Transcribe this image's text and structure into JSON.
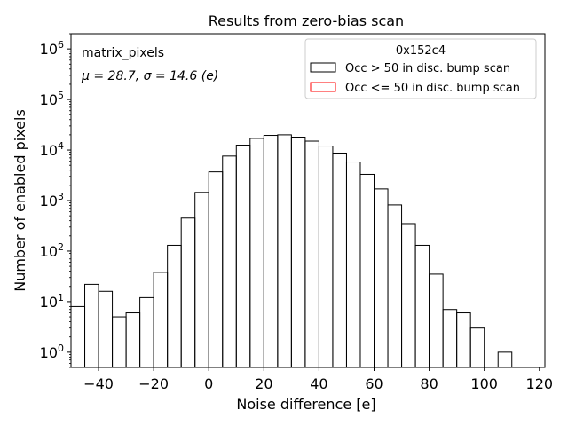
{
  "chart_data": {
    "type": "histogram",
    "title": "Results from zero-bias scan",
    "xlabel": "Noise difference [e]",
    "ylabel": "Number of enabled pixels",
    "xlim": [
      -50,
      122
    ],
    "ylim": [
      0.5,
      2000000
    ],
    "yscale": "log",
    "x_ticks": [
      -40,
      -20,
      0,
      20,
      40,
      60,
      80,
      100,
      120
    ],
    "x_tick_labels": [
      "−40",
      "−20",
      "0",
      "20",
      "40",
      "60",
      "80",
      "100",
      "120"
    ],
    "y_ticks": [
      1,
      10,
      100,
      1000,
      10000,
      100000,
      1000000
    ],
    "y_tick_labels": [
      {
        "base": "10",
        "exp": "0"
      },
      {
        "base": "10",
        "exp": "1"
      },
      {
        "base": "10",
        "exp": "2"
      },
      {
        "base": "10",
        "exp": "3"
      },
      {
        "base": "10",
        "exp": "4"
      },
      {
        "base": "10",
        "exp": "5"
      },
      {
        "base": "10",
        "exp": "6"
      }
    ],
    "annotations": {
      "name": "matrix_pixels",
      "stats": "μ = 28.7, σ = 14.6 (e)"
    },
    "legend": {
      "title": "0x152c4",
      "placement": "top-right"
    },
    "bin_edges": [
      -50,
      -45,
      -40,
      -35,
      -30,
      -25,
      -20,
      -15,
      -10,
      -5,
      0,
      5,
      10,
      15,
      20,
      25,
      30,
      35,
      40,
      45,
      50,
      55,
      60,
      65,
      70,
      75,
      80,
      85,
      90,
      95,
      100,
      105,
      110
    ],
    "series": [
      {
        "name": "Occ > 50 in disc. bump scan",
        "color": "#000000",
        "counts": [
          8,
          22,
          16,
          5,
          6,
          12,
          38,
          130,
          450,
          1450,
          3700,
          7600,
          12500,
          17000,
          19500,
          20000,
          18000,
          15000,
          12000,
          8700,
          5800,
          3300,
          1700,
          820,
          350,
          130,
          35,
          7,
          6,
          3,
          0,
          1
        ]
      },
      {
        "name": "Occ <= 50 in disc. bump scan",
        "color": "#ff0000",
        "counts": []
      }
    ]
  }
}
